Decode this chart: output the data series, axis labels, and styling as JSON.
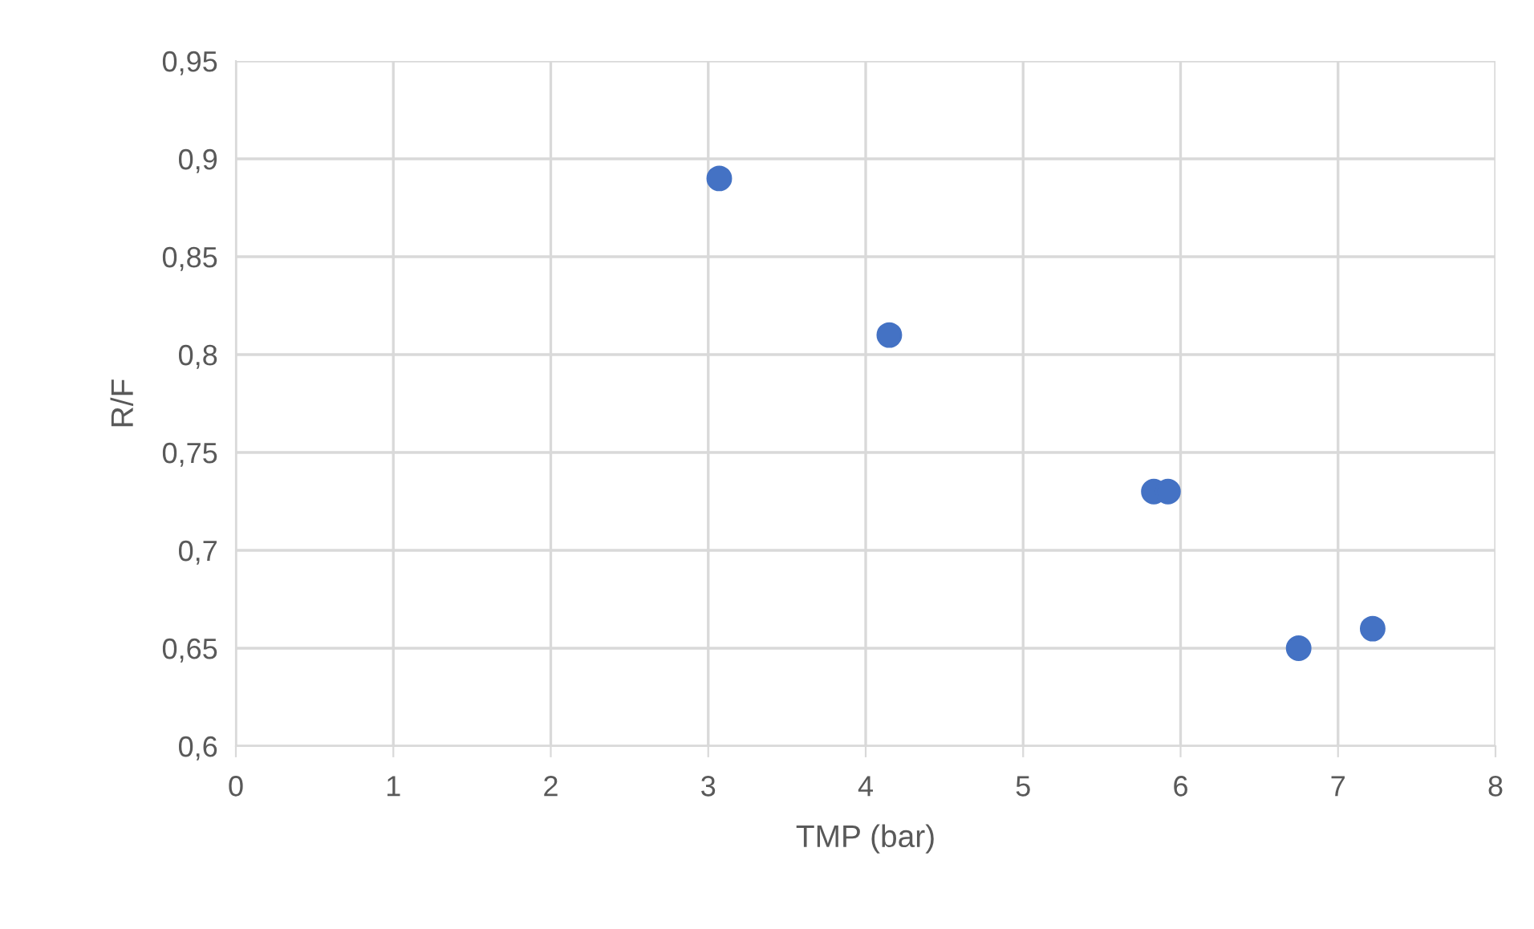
{
  "chart_data": {
    "type": "scatter",
    "xlabel": "TMP (bar)",
    "ylabel": "R/F",
    "series": [
      {
        "color": "#4472c4",
        "x": [
          3.07,
          4.15,
          5.83,
          5.92,
          6.75,
          7.22
        ],
        "values": [
          0.89,
          0.81,
          0.73,
          0.73,
          0.65,
          0.66
        ]
      }
    ],
    "xlim": [
      0,
      8
    ],
    "xticks": [
      0,
      1,
      2,
      3,
      4,
      5,
      6,
      7,
      8
    ],
    "ylim": [
      0.6,
      0.95
    ],
    "yticks": [
      {
        "value": 0.6,
        "label": "0,6"
      },
      {
        "value": 0.65,
        "label": "0,65"
      },
      {
        "value": 0.7,
        "label": "0,7"
      },
      {
        "value": 0.75,
        "label": "0,75"
      },
      {
        "value": 0.8,
        "label": "0,8"
      },
      {
        "value": 0.85,
        "label": "0,85"
      },
      {
        "value": 0.9,
        "label": "0,9"
      },
      {
        "value": 0.95,
        "label": "0,95"
      }
    ],
    "grid": true,
    "marker": "circle"
  }
}
